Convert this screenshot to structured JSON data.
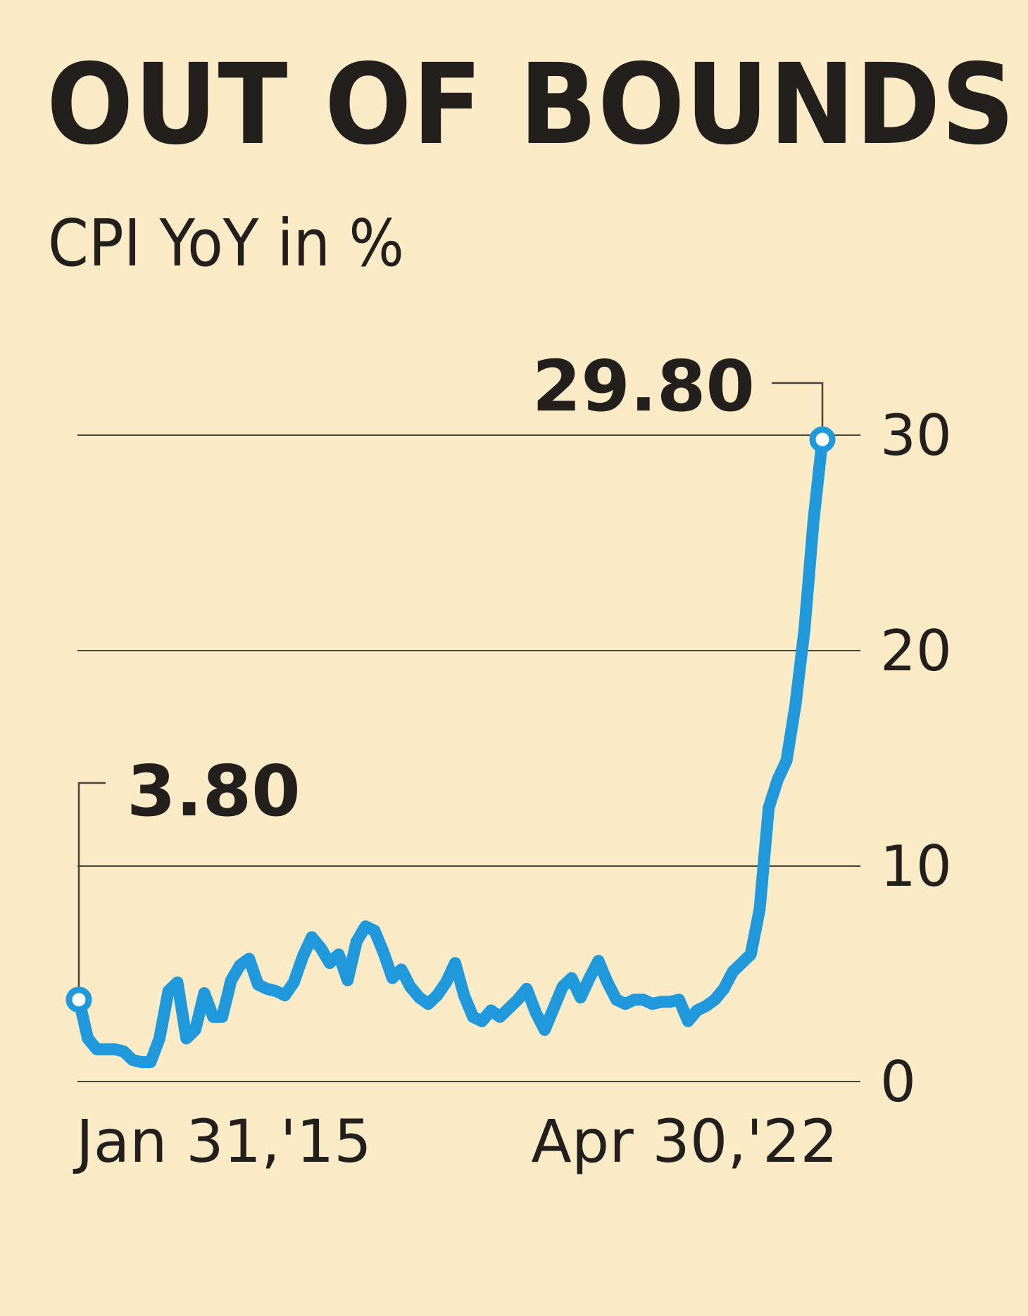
{
  "chart_data": {
    "type": "line",
    "title": "OUT OF BOUNDS",
    "subtitle": "CPI YoY in %",
    "ylim": [
      0,
      30
    ],
    "y_ticks": [
      "0",
      "10",
      "20",
      "30"
    ],
    "y_tick_values": [
      0,
      10,
      20,
      30
    ],
    "x_tick_labels": [
      "Jan 31,'15",
      "Apr 30,'22"
    ],
    "grid": true,
    "series_color": "#1f98dc",
    "series": [
      {
        "values": [
          3.8,
          2.0,
          1.5,
          1.5,
          1.5,
          1.4,
          1.0,
          0.9,
          0.9,
          2.0,
          4.2,
          4.6,
          2.0,
          2.4,
          4.1,
          3.0,
          3.0,
          4.7,
          5.4,
          5.7,
          4.5,
          4.3,
          4.2,
          4.0,
          4.6,
          5.8,
          6.7,
          6.2,
          5.5,
          5.9,
          4.7,
          6.5,
          7.2,
          7.0,
          6.0,
          4.8,
          5.2,
          4.4,
          3.9,
          3.6,
          4.0,
          4.6,
          5.5,
          4.0,
          3.0,
          2.8,
          3.3,
          3.0,
          3.4,
          3.8,
          4.3,
          3.2,
          2.4,
          3.4,
          4.4,
          4.8,
          3.9,
          4.8,
          5.6,
          4.6,
          3.8,
          3.6,
          3.8,
          3.8,
          3.6,
          3.7,
          3.7,
          3.8,
          2.8,
          3.3,
          3.5,
          3.8,
          4.3,
          5.1,
          5.5,
          5.9,
          8.0,
          12.7,
          14.0,
          14.9,
          17.5,
          21.0,
          26.0,
          29.8
        ]
      }
    ],
    "annotations": [
      {
        "text": "3.80",
        "value": 3.8,
        "at": "start"
      },
      {
        "text": "29.80",
        "value": 29.8,
        "at": "end"
      }
    ]
  }
}
